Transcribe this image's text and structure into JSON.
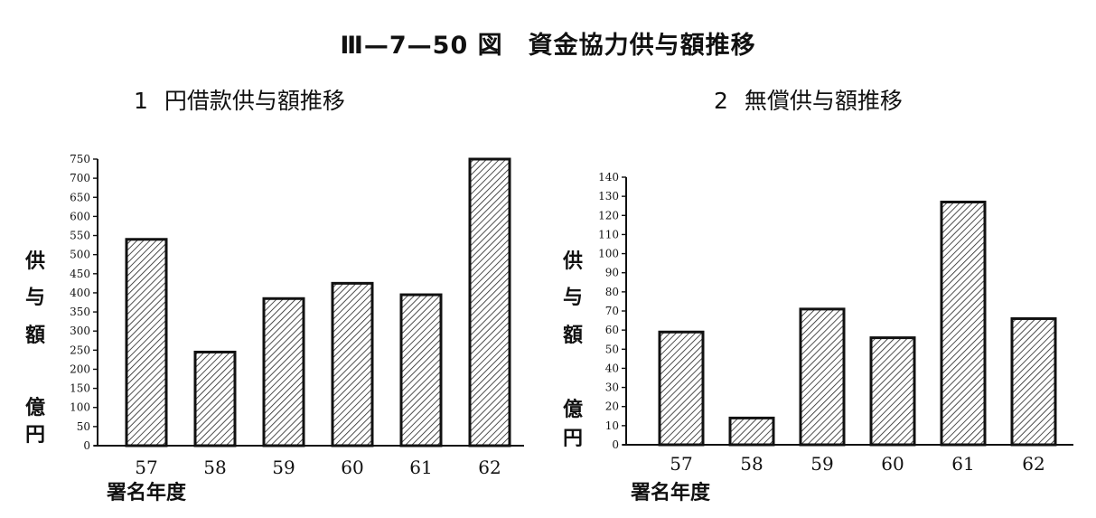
{
  "figure_title": "Ⅲ—7—50 図　資金協力供与額推移",
  "colors": {
    "bar_fill": "#ffffff",
    "bar_hatch": "#222222",
    "axis": "#111111"
  },
  "chart_data": [
    {
      "type": "bar",
      "panel_number": "1",
      "title": "円借款供与額推移",
      "ylabel": "供与額",
      "yunit": "億円",
      "xlabel": "署名年度",
      "categories": [
        "57",
        "58",
        "59",
        "60",
        "61",
        "62"
      ],
      "values": [
        540,
        245,
        385,
        425,
        395,
        750
      ],
      "ylim": [
        0,
        750
      ],
      "yticks": [
        0,
        50,
        100,
        150,
        200,
        250,
        300,
        350,
        400,
        450,
        500,
        550,
        600,
        650,
        700,
        750
      ],
      "grid": false,
      "legend": "none"
    },
    {
      "type": "bar",
      "panel_number": "2",
      "title": "無償供与額推移",
      "ylabel": "供与額",
      "yunit": "億円",
      "xlabel": "署名年度",
      "categories": [
        "57",
        "58",
        "59",
        "60",
        "61",
        "62"
      ],
      "values": [
        59,
        14,
        71,
        56,
        127,
        66
      ],
      "ylim": [
        0,
        140
      ],
      "yticks": [
        0,
        10,
        20,
        30,
        40,
        50,
        60,
        70,
        80,
        90,
        100,
        110,
        120,
        130,
        140
      ],
      "grid": false,
      "legend": "none"
    }
  ]
}
